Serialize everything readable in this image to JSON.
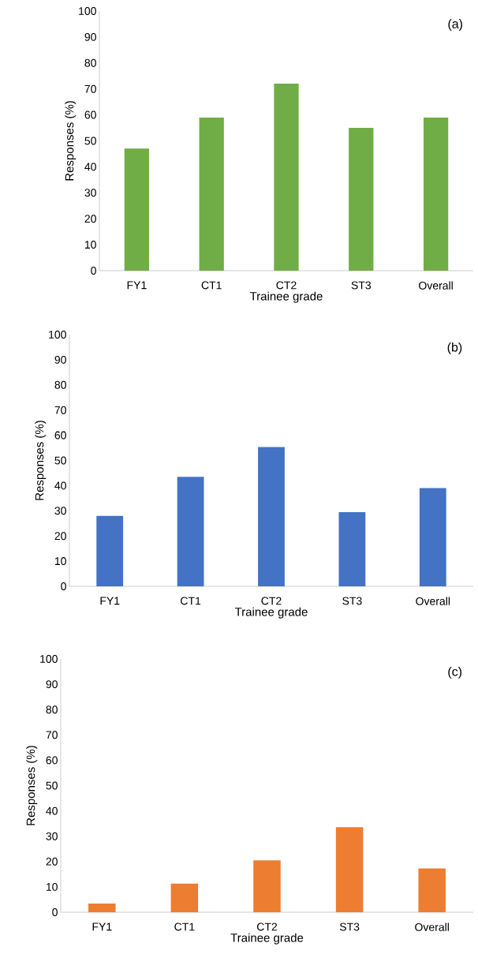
{
  "chart_data": [
    {
      "type": "bar",
      "categories": [
        "FY1",
        "CT1",
        "CT2",
        "ST3",
        "Overall"
      ],
      "values": [
        47,
        59,
        72,
        55,
        59
      ],
      "color": "#70ad47",
      "xlabel": "Trainee grade",
      "ylabel": "Responses (%)",
      "ylim": [
        0,
        100
      ],
      "yticks": [
        0,
        10,
        20,
        30,
        40,
        50,
        60,
        70,
        80,
        90,
        100
      ],
      "annotations": [
        "(a)"
      ]
    },
    {
      "type": "bar",
      "categories": [
        "FY1",
        "CT1",
        "CT2",
        "ST3",
        "Overall"
      ],
      "values": [
        28,
        43.5,
        55.3,
        29.5,
        39
      ],
      "color": "#4472c4",
      "xlabel": "Trainee grade",
      "ylabel": "Responses (%)",
      "ylim": [
        0,
        100
      ],
      "yticks": [
        0,
        10,
        20,
        30,
        40,
        50,
        60,
        70,
        80,
        90,
        100
      ],
      "annotations": [
        "(b)"
      ]
    },
    {
      "type": "bar",
      "categories": [
        "FY1",
        "CT1",
        "CT2",
        "ST3",
        "Overall"
      ],
      "values": [
        3.4,
        11.3,
        20.5,
        33.6,
        17.3
      ],
      "color": "#ed7d31",
      "xlabel": "Trainee grade",
      "ylabel": "Responses (%)",
      "ylim": [
        0,
        100
      ],
      "yticks": [
        0,
        10,
        20,
        30,
        40,
        50,
        60,
        70,
        80,
        90,
        100
      ],
      "annotations": [
        "(c)"
      ]
    }
  ]
}
